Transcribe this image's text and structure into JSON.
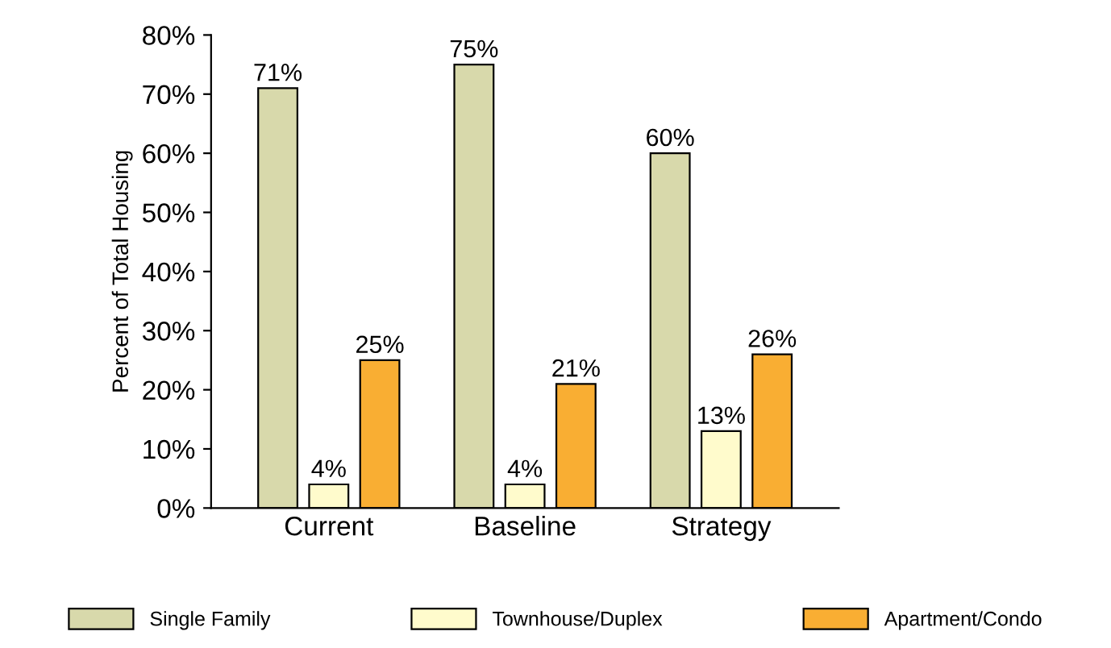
{
  "chart_data": {
    "type": "bar",
    "ylabel": "Percent of Total Housing",
    "categories": [
      "Current",
      "Baseline",
      "Strategy"
    ],
    "series": [
      {
        "name": "Single Family",
        "color": "#d8d9ab",
        "values": [
          71,
          75,
          60
        ],
        "value_labels": [
          "71%",
          "75%",
          "60%"
        ]
      },
      {
        "name": "Townhouse/Duplex",
        "color": "#fffbcc",
        "values": [
          4,
          4,
          13
        ],
        "value_labels": [
          "4%",
          "4%",
          "13%"
        ]
      },
      {
        "name": "Apartment/Condo",
        "color": "#f9ae33",
        "values": [
          25,
          21,
          26
        ],
        "value_labels": [
          "25%",
          "21%",
          "26%"
        ]
      }
    ],
    "ylim": [
      0,
      80
    ],
    "yticks": [
      {
        "value": 0,
        "label": "0%"
      },
      {
        "value": 10,
        "label": "10%"
      },
      {
        "value": 20,
        "label": "20%"
      },
      {
        "value": 30,
        "label": "30%"
      },
      {
        "value": 40,
        "label": "40%"
      },
      {
        "value": 50,
        "label": "50%"
      },
      {
        "value": 60,
        "label": "60%"
      },
      {
        "value": 70,
        "label": "70%"
      },
      {
        "value": 80,
        "label": "80%"
      }
    ],
    "grid": false,
    "legend": "bottom"
  }
}
